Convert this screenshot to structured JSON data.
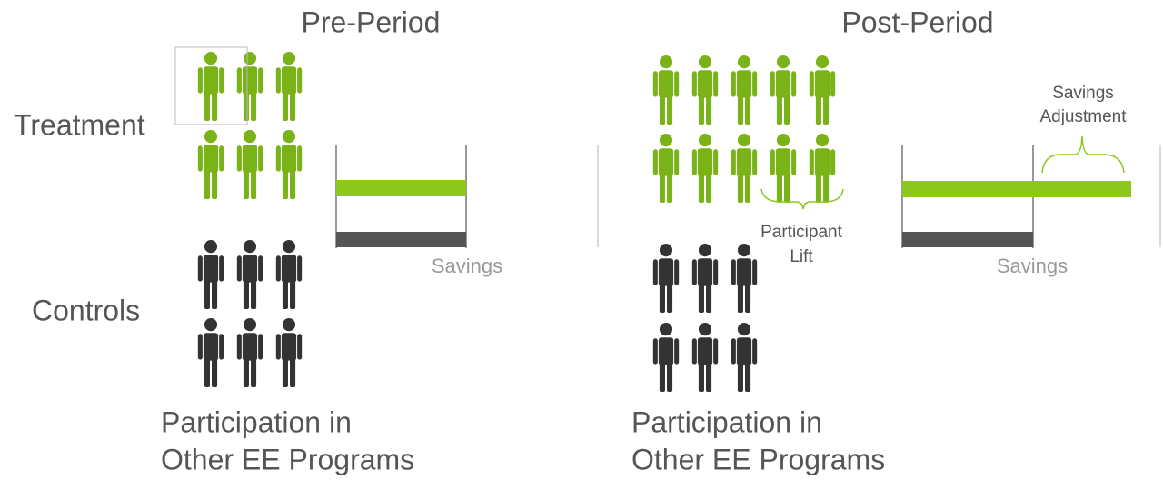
{
  "pre_period": {
    "title": "Pre-Period",
    "row_labels": [
      "Treatment",
      "Controls"
    ],
    "savings_label": "Savings",
    "caption": [
      "Participation in",
      "Other EE Programs"
    ]
  },
  "post_period": {
    "title": "Post-Period",
    "savings_label": "Savings",
    "participant_lift": [
      "Participant",
      "Lift"
    ],
    "savings_adjustment": [
      "Savings",
      "Adjustment"
    ],
    "caption": [
      "Participation in",
      "Other EE Programs"
    ]
  }
}
